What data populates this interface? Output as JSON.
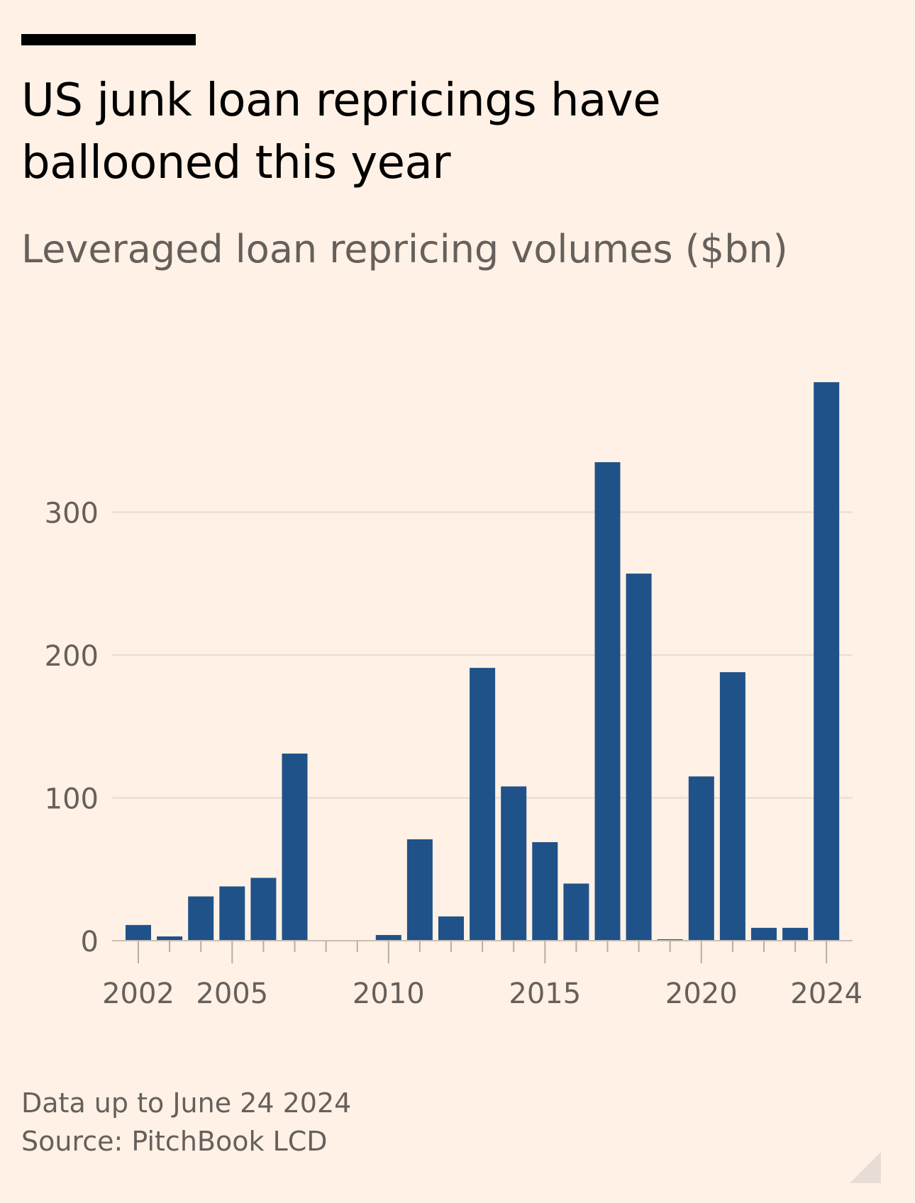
{
  "header": {
    "title": "US junk loan repricings have ballooned this year",
    "subtitle": "Leveraged loan repricing volumes ($bn)"
  },
  "footer": {
    "data_note": "Data up to June 24 2024",
    "source": "Source: PitchBook LCD"
  },
  "colors": {
    "background": "#fff1e5",
    "bar": "#1f5289",
    "gridline": "#e6dcd3",
    "text_muted": "#66605c"
  },
  "chart_data": {
    "type": "bar",
    "title": "US junk loan repricings have ballooned this year",
    "subtitle": "Leveraged loan repricing volumes ($bn)",
    "xlabel": "",
    "ylabel": "",
    "ylim": [
      0,
      400
    ],
    "yticks": [
      0,
      100,
      200,
      300
    ],
    "xtick_labels": [
      2002,
      2005,
      2010,
      2015,
      2020,
      2024
    ],
    "grid": true,
    "categories": [
      2002,
      2003,
      2004,
      2005,
      2006,
      2007,
      2008,
      2009,
      2010,
      2011,
      2012,
      2013,
      2014,
      2015,
      2016,
      2017,
      2018,
      2019,
      2020,
      2021,
      2022,
      2023,
      2024
    ],
    "values": [
      11,
      3,
      31,
      38,
      44,
      131,
      0,
      0,
      4,
      71,
      17,
      191,
      108,
      69,
      40,
      335,
      257,
      1,
      115,
      188,
      9,
      9,
      391
    ]
  }
}
